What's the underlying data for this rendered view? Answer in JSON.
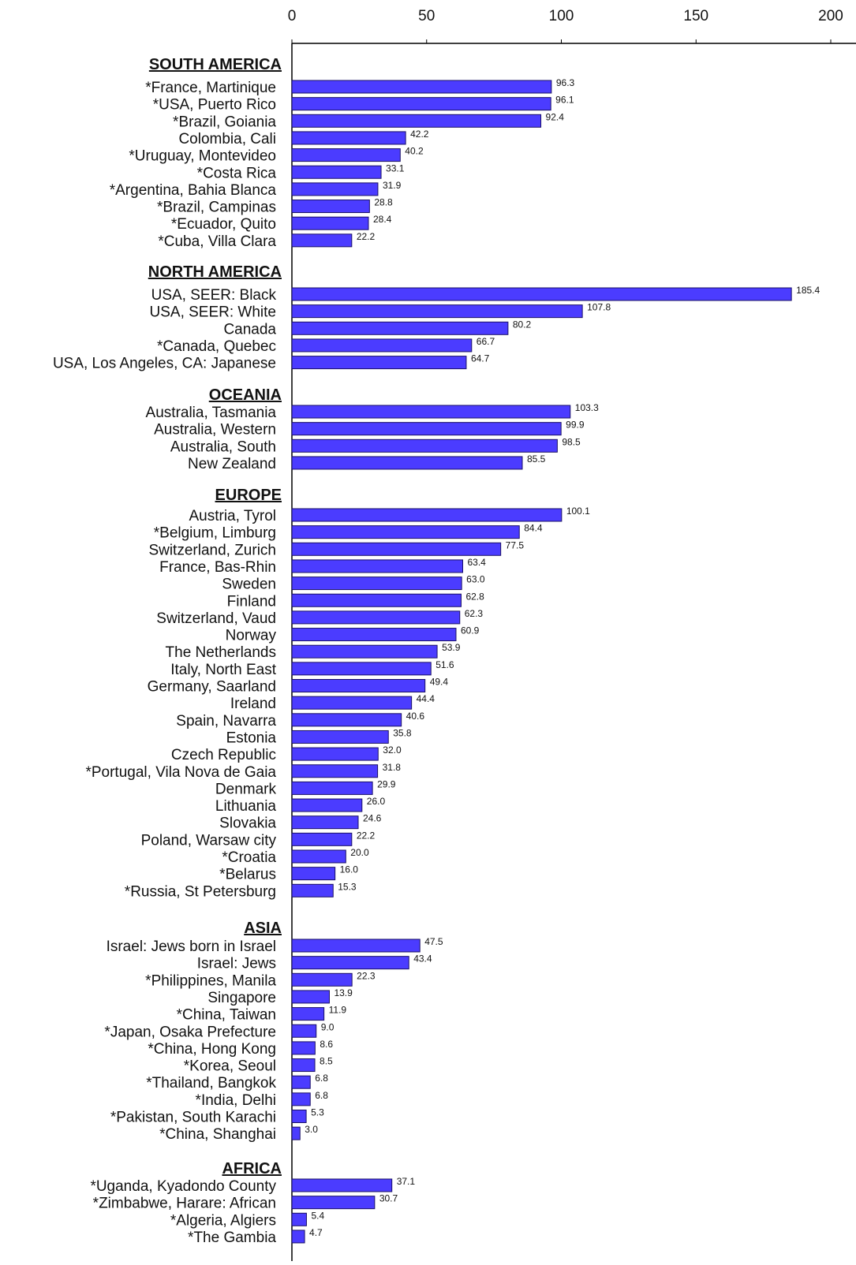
{
  "chart_data": {
    "type": "bar",
    "orientation": "horizontal",
    "title": "",
    "xlabel": "",
    "ylabel": "",
    "xlim": [
      0,
      200
    ],
    "x_ticks": [
      "0",
      "50",
      "100",
      "150",
      "200"
    ],
    "grid": false,
    "bar_color": "#4b3cff",
    "groups": [
      {
        "name": "SOUTH AMERICA",
        "items": [
          {
            "label": "*France, Martinique",
            "value": 96.3,
            "value_label": "96.3"
          },
          {
            "label": "*USA, Puerto Rico",
            "value": 96.1,
            "value_label": "96.1"
          },
          {
            "label": "*Brazil, Goiania",
            "value": 92.4,
            "value_label": "92.4"
          },
          {
            "label": "Colombia, Cali",
            "value": 42.2,
            "value_label": "42.2"
          },
          {
            "label": "*Uruguay, Montevideo",
            "value": 40.2,
            "value_label": "40.2"
          },
          {
            "label": "*Costa Rica",
            "value": 33.1,
            "value_label": "33.1"
          },
          {
            "label": "*Argentina, Bahia Blanca",
            "value": 31.9,
            "value_label": "31.9"
          },
          {
            "label": "*Brazil, Campinas",
            "value": 28.8,
            "value_label": "28.8"
          },
          {
            "label": "*Ecuador, Quito",
            "value": 28.4,
            "value_label": "28.4"
          },
          {
            "label": "*Cuba, Villa Clara",
            "value": 22.2,
            "value_label": "22.2"
          }
        ]
      },
      {
        "name": "NORTH AMERICA",
        "items": [
          {
            "label": "USA, SEER: Black",
            "value": 185.4,
            "value_label": "185.4"
          },
          {
            "label": "USA, SEER: White",
            "value": 107.8,
            "value_label": "107.8"
          },
          {
            "label": "Canada",
            "value": 80.2,
            "value_label": "80.2"
          },
          {
            "label": "*Canada, Quebec",
            "value": 66.7,
            "value_label": "66.7"
          },
          {
            "label": "USA, Los Angeles, CA: Japanese",
            "value": 64.7,
            "value_label": "64.7"
          }
        ]
      },
      {
        "name": "OCEANIA",
        "items": [
          {
            "label": "Australia, Tasmania",
            "value": 103.3,
            "value_label": "103.3"
          },
          {
            "label": "Australia, Western",
            "value": 99.9,
            "value_label": "99.9"
          },
          {
            "label": "Australia, South",
            "value": 98.5,
            "value_label": "98.5"
          },
          {
            "label": "New Zealand",
            "value": 85.5,
            "value_label": "85.5"
          }
        ]
      },
      {
        "name": "EUROPE",
        "items": [
          {
            "label": "Austria, Tyrol",
            "value": 100.1,
            "value_label": "100.1"
          },
          {
            "label": "*Belgium, Limburg",
            "value": 84.4,
            "value_label": "84.4"
          },
          {
            "label": "Switzerland, Zurich",
            "value": 77.5,
            "value_label": "77.5"
          },
          {
            "label": "France, Bas-Rhin",
            "value": 63.4,
            "value_label": "63.4"
          },
          {
            "label": "Sweden",
            "value": 63.0,
            "value_label": "63.0"
          },
          {
            "label": "Finland",
            "value": 62.8,
            "value_label": "62.8"
          },
          {
            "label": "Switzerland, Vaud",
            "value": 62.3,
            "value_label": "62.3"
          },
          {
            "label": "Norway",
            "value": 60.9,
            "value_label": "60.9"
          },
          {
            "label": "The Netherlands",
            "value": 53.9,
            "value_label": "53.9"
          },
          {
            "label": "Italy, North East",
            "value": 51.6,
            "value_label": "51.6"
          },
          {
            "label": "Germany, Saarland",
            "value": 49.4,
            "value_label": "49.4"
          },
          {
            "label": "Ireland",
            "value": 44.4,
            "value_label": "44.4"
          },
          {
            "label": "Spain, Navarra",
            "value": 40.6,
            "value_label": "40.6"
          },
          {
            "label": "Estonia",
            "value": 35.8,
            "value_label": "35.8"
          },
          {
            "label": "Czech Republic",
            "value": 32.0,
            "value_label": "32.0"
          },
          {
            "label": "*Portugal, Vila Nova de Gaia",
            "value": 31.8,
            "value_label": "31.8"
          },
          {
            "label": "Denmark",
            "value": 29.9,
            "value_label": "29.9"
          },
          {
            "label": "Lithuania",
            "value": 26.0,
            "value_label": "26.0"
          },
          {
            "label": "Slovakia",
            "value": 24.6,
            "value_label": "24.6"
          },
          {
            "label": "Poland, Warsaw city",
            "value": 22.2,
            "value_label": "22.2"
          },
          {
            "label": "*Croatia",
            "value": 20.0,
            "value_label": "20.0"
          },
          {
            "label": "*Belarus",
            "value": 16.0,
            "value_label": "16.0"
          },
          {
            "label": "*Russia, St Petersburg",
            "value": 15.3,
            "value_label": "15.3"
          }
        ]
      },
      {
        "name": "ASIA",
        "items": [
          {
            "label": "Israel: Jews born in Israel",
            "value": 47.5,
            "value_label": "47.5"
          },
          {
            "label": "Israel: Jews",
            "value": 43.4,
            "value_label": "43.4"
          },
          {
            "label": "*Philippines, Manila",
            "value": 22.3,
            "value_label": "22.3"
          },
          {
            "label": "Singapore",
            "value": 13.9,
            "value_label": "13.9"
          },
          {
            "label": "*China, Taiwan",
            "value": 11.9,
            "value_label": "11.9"
          },
          {
            "label": "*Japan, Osaka Prefecture",
            "value": 9.0,
            "value_label": "9.0"
          },
          {
            "label": "*China, Hong Kong",
            "value": 8.6,
            "value_label": "8.6"
          },
          {
            "label": "*Korea, Seoul",
            "value": 8.5,
            "value_label": "8.5"
          },
          {
            "label": "*Thailand, Bangkok",
            "value": 6.8,
            "value_label": "6.8"
          },
          {
            "label": "*India, Delhi",
            "value": 6.8,
            "value_label": "6.8"
          },
          {
            "label": "*Pakistan, South Karachi",
            "value": 5.3,
            "value_label": "5.3"
          },
          {
            "label": "*China, Shanghai",
            "value": 3.0,
            "value_label": "3.0"
          }
        ]
      },
      {
        "name": "AFRICA",
        "items": [
          {
            "label": "*Uganda, Kyadondo County",
            "value": 37.1,
            "value_label": "37.1"
          },
          {
            "label": "*Zimbabwe, Harare: African",
            "value": 30.7,
            "value_label": "30.7"
          },
          {
            "label": "*Algeria, Algiers",
            "value": 5.4,
            "value_label": "5.4"
          },
          {
            "label": "*The Gambia",
            "value": 4.7,
            "value_label": "4.7"
          }
        ]
      }
    ]
  }
}
